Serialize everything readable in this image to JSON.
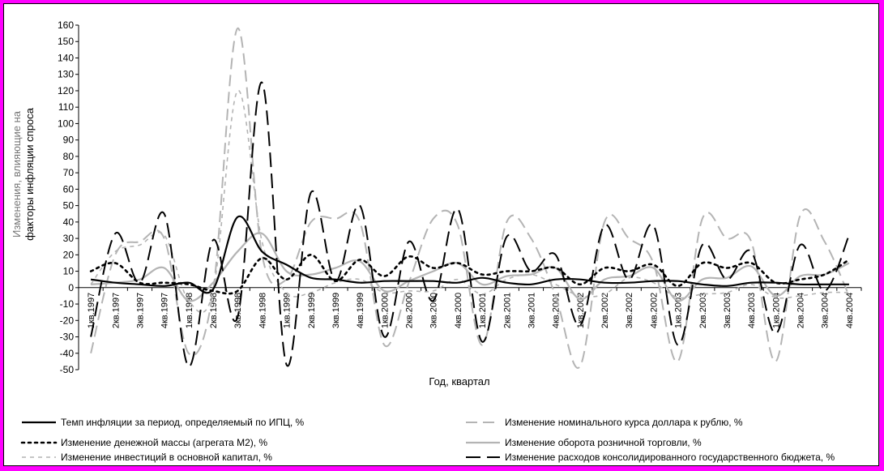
{
  "chart_data": {
    "type": "line",
    "xlabel": "Год, квартал",
    "ylabel": "факторы инфляции спроса",
    "ylabel_upper": "Изменения, влияющие на",
    "ylim": [
      -50,
      160
    ],
    "ytick_step": 10,
    "grid": false,
    "legend_position": "bottom",
    "categories": [
      "1кв.1997",
      "2кв.1997",
      "3кв.1997",
      "4кв.1997",
      "1кв.1998",
      "2кв.1998",
      "3кв.1998",
      "4кв.1998",
      "1кв.1999",
      "2кв.1999",
      "3кв.1999",
      "4кв.1999",
      "1кв.2000",
      "2кв.2000",
      "3кв.2000",
      "4кв.2000",
      "1кв.2001",
      "2кв.2001",
      "3кв.2001",
      "4кв.2001",
      "1кв.2002",
      "2кв.2002",
      "3кв.2002",
      "4кв.2002",
      "1кв.2003",
      "2кв.2003",
      "3кв.2003",
      "4кв.2003",
      "1кв.2004",
      "2кв.2004",
      "3кв.2004",
      "4кв.2004"
    ],
    "series": [
      {
        "name": "Темп инфляции за период, определяемый по ИПЦ, %",
        "style": "solid",
        "color": "#000000",
        "width": 2.2,
        "values": [
          5,
          3,
          2,
          1,
          3,
          -1,
          43,
          22,
          14,
          6,
          5,
          3,
          4,
          4,
          4,
          3,
          6,
          3,
          2,
          5,
          5,
          3,
          3,
          4,
          4,
          2,
          1,
          3,
          3,
          2,
          2,
          2
        ]
      },
      {
        "name": "Изменение номинального курса доллара к рублю, %",
        "style": "dash",
        "color": "#b4b4b4",
        "width": 2,
        "values": [
          -40,
          20,
          28,
          30,
          -40,
          -2,
          158,
          20,
          5,
          40,
          42,
          40,
          -35,
          3,
          42,
          38,
          -35,
          40,
          30,
          -5,
          -48,
          40,
          30,
          15,
          -45,
          42,
          30,
          28,
          -45,
          44,
          28,
          -5
        ]
      },
      {
        "name": "Изменение денежной массы (агрегата М2), %",
        "style": "dot",
        "color": "#000000",
        "width": 2.6,
        "values": [
          10,
          15,
          3,
          3,
          2,
          -2,
          -2,
          18,
          5,
          20,
          4,
          17,
          7,
          19,
          12,
          15,
          8,
          10,
          10,
          12,
          2,
          12,
          10,
          14,
          1,
          15,
          12,
          15,
          3,
          5,
          8,
          17
        ]
      },
      {
        "name": "Изменение оборота розничной торговли, %",
        "style": "solid",
        "color": "#b4b4b4",
        "width": 2.2,
        "values": [
          2,
          3,
          5,
          12,
          -8,
          3,
          22,
          33,
          10,
          8,
          12,
          16,
          -2,
          4,
          10,
          15,
          2,
          7,
          8,
          12,
          -7,
          5,
          7,
          12,
          -8,
          5,
          6,
          13,
          -5,
          7,
          8,
          15
        ]
      },
      {
        "name": "Изменение инвестиций в основной капитал, %",
        "style": "smalldash",
        "color": "#b4b4b4",
        "width": 1.6,
        "values": [
          2,
          22,
          26,
          32,
          -8,
          -2,
          120,
          28,
          -3,
          -3,
          3,
          5,
          -3,
          -2,
          -2,
          5,
          -4,
          5,
          8,
          2,
          -5,
          -4,
          6,
          3,
          -6,
          -4,
          -3,
          2,
          -6,
          -5,
          -3,
          -3
        ]
      },
      {
        "name": "Изменение расходов консолидированного государственного бюджета, %",
        "style": "longdash",
        "color": "#000000",
        "width": 2,
        "values": [
          -30,
          33,
          3,
          45,
          -48,
          29,
          -18,
          125,
          -47,
          58,
          4,
          50,
          -30,
          28,
          -8,
          48,
          -33,
          31,
          10,
          20,
          -23,
          38,
          5,
          38,
          -35,
          26,
          5,
          22,
          -28,
          26,
          -2,
          32
        ]
      }
    ]
  }
}
